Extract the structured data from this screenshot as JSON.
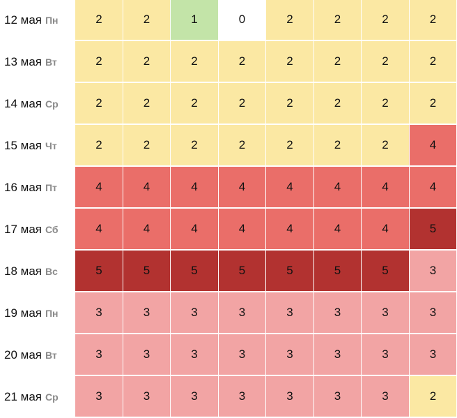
{
  "colors": {
    "0": "#ffffff",
    "1": "#c3e4a8",
    "2": "#fbe8a3",
    "3": "#f2a4a4",
    "4": "#ea6e69",
    "5": "#b23230"
  },
  "rows": [
    {
      "date": "12 мая",
      "weekday": "Пн",
      "values": [
        2,
        2,
        1,
        0,
        2,
        2,
        2,
        2
      ]
    },
    {
      "date": "13 мая",
      "weekday": "Вт",
      "values": [
        2,
        2,
        2,
        2,
        2,
        2,
        2,
        2
      ]
    },
    {
      "date": "14 мая",
      "weekday": "Ср",
      "values": [
        2,
        2,
        2,
        2,
        2,
        2,
        2,
        2
      ]
    },
    {
      "date": "15 мая",
      "weekday": "Чт",
      "values": [
        2,
        2,
        2,
        2,
        2,
        2,
        2,
        4
      ]
    },
    {
      "date": "16 мая",
      "weekday": "Пт",
      "values": [
        4,
        4,
        4,
        4,
        4,
        4,
        4,
        4
      ]
    },
    {
      "date": "17 мая",
      "weekday": "Сб",
      "values": [
        4,
        4,
        4,
        4,
        4,
        4,
        4,
        5
      ]
    },
    {
      "date": "18 мая",
      "weekday": "Вс",
      "values": [
        5,
        5,
        5,
        5,
        5,
        5,
        5,
        3
      ]
    },
    {
      "date": "19 мая",
      "weekday": "Пн",
      "values": [
        3,
        3,
        3,
        3,
        3,
        3,
        3,
        3
      ]
    },
    {
      "date": "20 мая",
      "weekday": "Вт",
      "values": [
        3,
        3,
        3,
        3,
        3,
        3,
        3,
        3
      ]
    },
    {
      "date": "21 мая",
      "weekday": "Ср",
      "values": [
        3,
        3,
        3,
        3,
        3,
        3,
        3,
        2
      ]
    }
  ]
}
